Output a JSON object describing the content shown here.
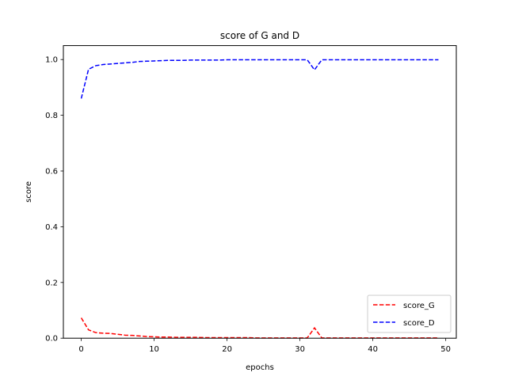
{
  "chart_data": {
    "type": "line",
    "title": "score of G and D",
    "xlabel": "epochs",
    "ylabel": "score",
    "xlim": [
      -2.45,
      51.45
    ],
    "ylim": [
      0,
      1.05
    ],
    "xticks": [
      0,
      10,
      20,
      30,
      40,
      50
    ],
    "yticks": [
      0.0,
      0.2,
      0.4,
      0.6,
      0.8,
      1.0
    ],
    "xtick_labels": [
      "0",
      "10",
      "20",
      "30",
      "40",
      "50"
    ],
    "ytick_labels": [
      "0.0",
      "0.2",
      "0.4",
      "0.6",
      "0.8",
      "1.0"
    ],
    "grid": false,
    "legend_position": "lower-right",
    "x": [
      0,
      1,
      2,
      3,
      4,
      5,
      6,
      7,
      8,
      9,
      10,
      11,
      12,
      13,
      14,
      15,
      16,
      17,
      18,
      19,
      20,
      21,
      22,
      23,
      24,
      25,
      26,
      27,
      28,
      29,
      30,
      31,
      32,
      33,
      34,
      35,
      36,
      37,
      38,
      39,
      40,
      41,
      42,
      43,
      44,
      45,
      46,
      47,
      48,
      49
    ],
    "series": [
      {
        "name": "score_G",
        "color": "#ff0000",
        "values": [
          0.073,
          0.03,
          0.02,
          0.018,
          0.017,
          0.014,
          0.011,
          0.01,
          0.008,
          0.006,
          0.005,
          0.004,
          0.004,
          0.003,
          0.003,
          0.003,
          0.003,
          0.002,
          0.002,
          0.002,
          0.002,
          0.002,
          0.002,
          0.002,
          0.001,
          0.001,
          0.001,
          0.001,
          0.001,
          0.001,
          0.001,
          0.001,
          0.037,
          0.001,
          0.001,
          0.001,
          0.001,
          0.001,
          0.001,
          0.001,
          0.001,
          0.001,
          0.001,
          0.001,
          0.001,
          0.001,
          0.001,
          0.001,
          0.001,
          0.001
        ]
      },
      {
        "name": "score_D",
        "color": "#0000ff",
        "values": [
          0.86,
          0.965,
          0.978,
          0.982,
          0.984,
          0.986,
          0.988,
          0.99,
          0.993,
          0.994,
          0.995,
          0.996,
          0.997,
          0.997,
          0.997,
          0.998,
          0.998,
          0.998,
          0.998,
          0.998,
          0.999,
          0.999,
          0.999,
          0.999,
          0.999,
          0.999,
          0.999,
          0.999,
          0.999,
          0.999,
          0.999,
          0.999,
          0.963,
          0.999,
          0.999,
          0.999,
          0.999,
          0.999,
          0.999,
          0.999,
          0.999,
          0.999,
          0.999,
          0.999,
          0.999,
          0.999,
          0.999,
          0.999,
          0.999,
          0.999
        ]
      }
    ]
  }
}
